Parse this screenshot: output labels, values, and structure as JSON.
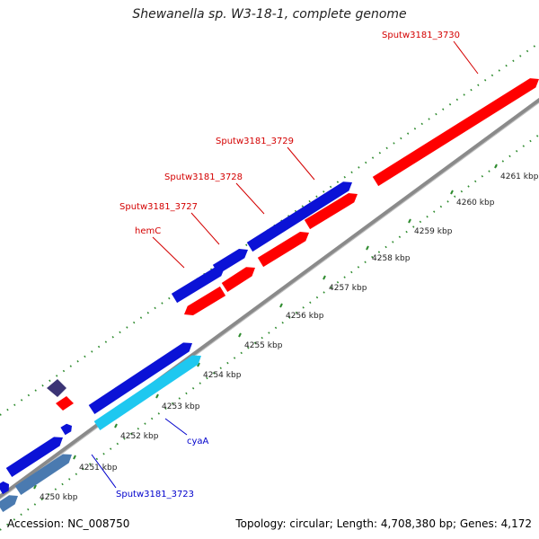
{
  "title": "Shewanella sp. W3-18-1, complete genome",
  "footer": {
    "accession": "Accession: NC_008750",
    "summary": "Topology: circular; Length: 4,708,380 bp; Genes: 4,172"
  },
  "colors": {
    "forward_cds": "#0b12d6",
    "reverse_cds": "#ff0000",
    "light_blue": "#1ec8f0",
    "steel_blue": "#4a7ab0",
    "dark_purple": "#3b3475",
    "backbone": "#8a8a8a",
    "ticks": "#2e8b2e",
    "red_label": "#d40000",
    "blue_label": "#0000cc"
  },
  "ticks": [
    {
      "label": "4250 kbp"
    },
    {
      "label": "4251 kbp"
    },
    {
      "label": "4252 kbp"
    },
    {
      "label": "4253 kbp"
    },
    {
      "label": "4254 kbp"
    },
    {
      "label": "4255 kbp"
    },
    {
      "label": "4256 kbp"
    },
    {
      "label": "4257 kbp"
    },
    {
      "label": "4258 kbp"
    },
    {
      "label": "4259 kbp"
    },
    {
      "label": "4260 kbp"
    },
    {
      "label": "4261 kbp"
    }
  ],
  "gene_labels": [
    {
      "name": "Sputw3181_3730",
      "color": "red"
    },
    {
      "name": "Sputw3181_3729",
      "color": "red"
    },
    {
      "name": "Sputw3181_3728",
      "color": "red"
    },
    {
      "name": "Sputw3181_3727",
      "color": "red"
    },
    {
      "name": "hemC",
      "color": "red"
    },
    {
      "name": "cyaA",
      "color": "blue"
    },
    {
      "name": "Sputw3181_3723",
      "color": "blue"
    }
  ]
}
